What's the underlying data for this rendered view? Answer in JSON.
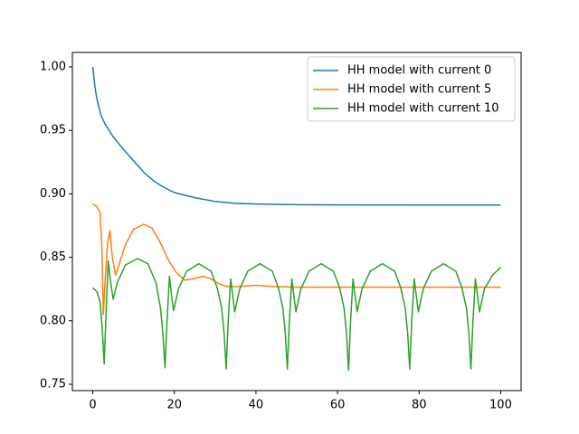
{
  "chart_data": {
    "type": "line",
    "xlim": [
      -5,
      105
    ],
    "xticks": [
      0,
      20,
      40,
      60,
      80,
      100
    ],
    "ylim": [
      0.745,
      1.0114
    ],
    "yticks": [
      0.75,
      {
        "value": 0.8,
        "label": "0.80"
      },
      0.85,
      {
        "value": 0.9,
        "label": "0.90"
      },
      0.95,
      {
        "value": 1.0,
        "label": "1.00"
      }
    ],
    "legend": "upper right",
    "series": [
      {
        "name": "HH model with current 0",
        "color": "#1f77b4",
        "x": [
          0,
          0.5,
          1,
          2,
          3,
          4,
          5,
          7,
          10,
          12.5,
          15,
          17.5,
          20,
          25,
          30,
          35,
          40,
          50,
          60,
          80,
          100
        ],
        "values": [
          1.0,
          0.985,
          0.975,
          0.962,
          0.955,
          0.95,
          0.945,
          0.937,
          0.926,
          0.917,
          0.91,
          0.905,
          0.901,
          0.897,
          0.894,
          0.8925,
          0.892,
          0.8915,
          0.8913,
          0.8912,
          0.8912
        ]
      },
      {
        "name": "HH model with current 5",
        "color": "#ff7f0e",
        "x": [
          0,
          1,
          1.8,
          2.2,
          2.6,
          3.0,
          3.6,
          4.2,
          4.8,
          5.6,
          6.5,
          8,
          10,
          12.5,
          14.5,
          16.5,
          18.5,
          20.5,
          22.5,
          24.5,
          27,
          29,
          31,
          33,
          36,
          40,
          44,
          50,
          60,
          80,
          100
        ],
        "values": [
          0.892,
          0.89,
          0.885,
          0.86,
          0.805,
          0.83,
          0.86,
          0.871,
          0.85,
          0.836,
          0.845,
          0.86,
          0.872,
          0.876,
          0.873,
          0.862,
          0.848,
          0.838,
          0.832,
          0.833,
          0.835,
          0.833,
          0.829,
          0.827,
          0.827,
          0.828,
          0.827,
          0.8265,
          0.8265,
          0.8265,
          0.8265
        ]
      },
      {
        "name": "HH model with current 10",
        "color": "#2ca02c",
        "x": [
          0,
          1,
          1.8,
          2.3,
          2.8,
          3.3,
          3.8,
          4.4,
          5,
          6,
          8,
          11,
          13.5,
          15.5,
          16.6,
          17.2,
          17.7,
          18.2,
          18.8,
          19.3,
          19.8,
          21,
          23,
          26,
          29,
          30.5,
          31.6,
          32.2,
          32.7,
          33.2,
          33.8,
          34.3,
          34.8,
          36,
          38,
          41,
          44,
          45.5,
          46.6,
          47.2,
          47.7,
          48.2,
          48.8,
          49.3,
          49.8,
          51,
          53,
          56,
          59,
          60.5,
          61.6,
          62.2,
          62.7,
          63.2,
          63.8,
          64.3,
          64.8,
          66,
          68,
          71,
          74,
          75.5,
          76.6,
          77.2,
          77.7,
          78.2,
          78.8,
          79.3,
          79.8,
          81,
          83,
          86,
          89,
          90.5,
          91.6,
          92.2,
          92.7,
          93.2,
          93.8,
          94.3,
          94.8,
          96,
          98,
          100
        ],
        "values": [
          0.826,
          0.823,
          0.815,
          0.795,
          0.766,
          0.81,
          0.847,
          0.83,
          0.817,
          0.83,
          0.844,
          0.849,
          0.845,
          0.83,
          0.81,
          0.79,
          0.763,
          0.8,
          0.835,
          0.82,
          0.808,
          0.825,
          0.839,
          0.845,
          0.839,
          0.826,
          0.81,
          0.79,
          0.762,
          0.8,
          0.833,
          0.82,
          0.807,
          0.825,
          0.839,
          0.845,
          0.839,
          0.826,
          0.81,
          0.79,
          0.762,
          0.8,
          0.833,
          0.82,
          0.807,
          0.825,
          0.839,
          0.845,
          0.839,
          0.826,
          0.81,
          0.79,
          0.761,
          0.8,
          0.833,
          0.82,
          0.807,
          0.825,
          0.839,
          0.845,
          0.839,
          0.826,
          0.81,
          0.79,
          0.762,
          0.8,
          0.833,
          0.82,
          0.807,
          0.825,
          0.839,
          0.845,
          0.839,
          0.826,
          0.81,
          0.79,
          0.762,
          0.8,
          0.833,
          0.82,
          0.807,
          0.825,
          0.836,
          0.842
        ]
      }
    ]
  }
}
